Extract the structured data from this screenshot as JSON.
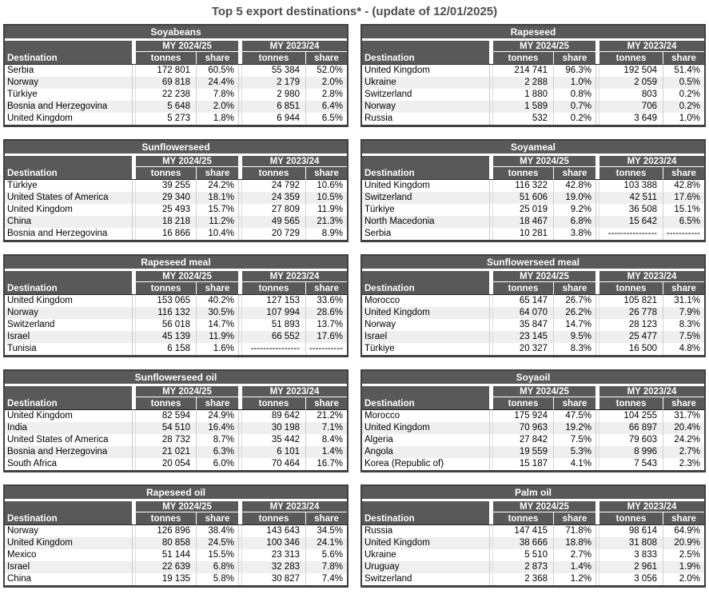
{
  "page": {
    "title": "Top 5 export destinations* - (update of 12/01/2025)"
  },
  "table_headers": {
    "destination": "Destination",
    "col_groups": [
      "MY 2024/25",
      "MY 2023/24"
    ],
    "sub_cols": [
      "tonnes",
      "share"
    ]
  },
  "colors": {
    "header_bg": "#595959",
    "header_text": "#ffffff",
    "alt_row_bg": "#efefef",
    "outer_border": "#404040",
    "title_text": "#4d4d4d"
  },
  "tables": [
    {
      "title": "Soyabeans",
      "rows": [
        [
          "Serbia",
          "172 801",
          "60.5%",
          "55 384",
          "52.0%"
        ],
        [
          "Norway",
          "69 818",
          "24.4%",
          "2 179",
          "2.0%"
        ],
        [
          "Türkiye",
          "22 238",
          "7.8%",
          "2 980",
          "2.8%"
        ],
        [
          "Bosnia and Herzegovina",
          "5 648",
          "2.0%",
          "6 851",
          "6.4%"
        ],
        [
          "United Kingdom",
          "5 273",
          "1.8%",
          "6 944",
          "6.5%"
        ]
      ]
    },
    {
      "title": "Rapeseed",
      "rows": [
        [
          "United Kingdom",
          "214 741",
          "96.3%",
          "192 504",
          "51.4%"
        ],
        [
          "Ukraine",
          "2 288",
          "1.0%",
          "2 059",
          "0.5%"
        ],
        [
          "Switzerland",
          "1 880",
          "0.8%",
          "803",
          "0.2%"
        ],
        [
          "Norway",
          "1 589",
          "0.7%",
          "706",
          "0.2%"
        ],
        [
          "Russia",
          "532",
          "0.2%",
          "3 649",
          "1.0%"
        ]
      ]
    },
    {
      "title": "Sunflowerseed",
      "rows": [
        [
          "Türkiye",
          "39 255",
          "24.2%",
          "24 792",
          "10.6%"
        ],
        [
          "United States of America",
          "29 340",
          "18.1%",
          "24 359",
          "10.5%"
        ],
        [
          "United Kingdom",
          "25 493",
          "15.7%",
          "27 809",
          "11.9%"
        ],
        [
          "China",
          "18 218",
          "11.2%",
          "49 565",
          "21.3%"
        ],
        [
          "Bosnia and Herzegovina",
          "16 866",
          "10.4%",
          "20 729",
          "8.9%"
        ]
      ]
    },
    {
      "title": "Soyameal",
      "rows": [
        [
          "United Kingdom",
          "116 322",
          "42.8%",
          "103 388",
          "42.8%"
        ],
        [
          "Switzerland",
          "51 606",
          "19.0%",
          "42 511",
          "17.6%"
        ],
        [
          "Türkiye",
          "25 019",
          "9.2%",
          "36 508",
          "15.1%"
        ],
        [
          "North Macedonia",
          "18 467",
          "6.8%",
          "15 642",
          "6.5%"
        ],
        [
          "Serbia",
          "10 281",
          "3.8%",
          "----------------",
          "-----------"
        ]
      ]
    },
    {
      "title": "Rapeseed meal",
      "rows": [
        [
          "United Kingdom",
          "153 065",
          "40.2%",
          "127 153",
          "33.6%"
        ],
        [
          "Norway",
          "116 132",
          "30.5%",
          "107 994",
          "28.6%"
        ],
        [
          "Switzerland",
          "56 018",
          "14.7%",
          "51 893",
          "13.7%"
        ],
        [
          "Israel",
          "45 139",
          "11.9%",
          "66 552",
          "17.6%"
        ],
        [
          "Tunisia",
          "6 158",
          "1.6%",
          "----------------",
          "-----------"
        ]
      ]
    },
    {
      "title": "Sunflowerseed meal",
      "rows": [
        [
          "Morocco",
          "65 147",
          "26.7%",
          "105 821",
          "31.1%"
        ],
        [
          "United Kingdom",
          "64 070",
          "26.2%",
          "26 778",
          "7.9%"
        ],
        [
          "Norway",
          "35 847",
          "14.7%",
          "28 123",
          "8.3%"
        ],
        [
          "Israel",
          "23 145",
          "9.5%",
          "25 477",
          "7.5%"
        ],
        [
          "Türkiye",
          "20 327",
          "8.3%",
          "16 500",
          "4.8%"
        ]
      ]
    },
    {
      "title": "Sunflowerseed oil",
      "rows": [
        [
          "United Kingdom",
          "82 594",
          "24.9%",
          "89 642",
          "21.2%"
        ],
        [
          "India",
          "54 510",
          "16.4%",
          "30 198",
          "7.1%"
        ],
        [
          "United States of America",
          "28 732",
          "8.7%",
          "35 442",
          "8.4%"
        ],
        [
          "Bosnia and Herzegovina",
          "21 021",
          "6.3%",
          "6 101",
          "1.4%"
        ],
        [
          "South Africa",
          "20 054",
          "6.0%",
          "70 464",
          "16.7%"
        ]
      ]
    },
    {
      "title": "Soyaoil",
      "rows": [
        [
          "Morocco",
          "175 924",
          "47.5%",
          "104 255",
          "31.7%"
        ],
        [
          "United Kingdom",
          "70 963",
          "19.2%",
          "66 897",
          "20.4%"
        ],
        [
          "Algeria",
          "27 842",
          "7.5%",
          "79 603",
          "24.2%"
        ],
        [
          "Angola",
          "19 559",
          "5.3%",
          "8 996",
          "2.7%"
        ],
        [
          "Korea (Republic of)",
          "15 187",
          "4.1%",
          "7 543",
          "2.3%"
        ]
      ]
    },
    {
      "title": "Rapeseed oil",
      "rows": [
        [
          "Norway",
          "126 896",
          "38.4%",
          "143 643",
          "34.5%"
        ],
        [
          "United Kingdom",
          "80 858",
          "24.5%",
          "100 346",
          "24.1%"
        ],
        [
          "Mexico",
          "51 144",
          "15.5%",
          "23 313",
          "5.6%"
        ],
        [
          "Israel",
          "22 639",
          "6.8%",
          "32 283",
          "7.8%"
        ],
        [
          "China",
          "19 135",
          "5.8%",
          "30 827",
          "7.4%"
        ]
      ]
    },
    {
      "title": "Palm oil",
      "rows": [
        [
          "Russia",
          "147 415",
          "71.8%",
          "98 614",
          "64.9%"
        ],
        [
          "United Kingdom",
          "38 666",
          "18.8%",
          "31 808",
          "20.9%"
        ],
        [
          "Ukraine",
          "5 510",
          "2.7%",
          "3 833",
          "2.5%"
        ],
        [
          "Uruguay",
          "2 873",
          "1.4%",
          "2 961",
          "1.9%"
        ],
        [
          "Switzerland",
          "2 368",
          "1.2%",
          "3 056",
          "2.0%"
        ]
      ]
    }
  ]
}
